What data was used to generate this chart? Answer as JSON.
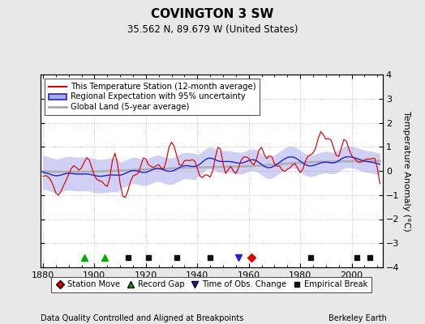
{
  "title": "COVINGTON 3 SW",
  "subtitle": "35.562 N, 89.679 W (United States)",
  "xlabel_note": "Data Quality Controlled and Aligned at Breakpoints",
  "credit": "Berkeley Earth",
  "year_start": 1880,
  "year_end": 2011,
  "ylim": [
    -4,
    4
  ],
  "yticks": [
    -4,
    -3,
    -2,
    -1,
    0,
    1,
    2,
    3,
    4
  ],
  "xticks": [
    1880,
    1900,
    1920,
    1940,
    1960,
    1980,
    2000
  ],
  "ylabel": "Temperature Anomaly (°C)",
  "bg_color": "#e8e8e8",
  "plot_bg_color": "#ffffff",
  "red_color": "#dd0000",
  "blue_color": "#2222cc",
  "blue_band_color": "#aaaaee",
  "gray_color": "#aaaaaa",
  "legend_items": [
    {
      "label": "This Temperature Station (12-month average)",
      "color": "#dd0000"
    },
    {
      "label": "Regional Expectation with 95% uncertainty",
      "color": "#2222cc"
    },
    {
      "label": "Global Land (5-year average)",
      "color": "#aaaaaa"
    }
  ],
  "marker_items": [
    {
      "label": "Station Move",
      "color": "#dd0000",
      "marker": "D",
      "ms": 5
    },
    {
      "label": "Record Gap",
      "color": "#00aa00",
      "marker": "^",
      "ms": 6
    },
    {
      "label": "Time of Obs. Change",
      "color": "#2222cc",
      "marker": "v",
      "ms": 6
    },
    {
      "label": "Empirical Break",
      "color": "#111111",
      "marker": "s",
      "ms": 4
    }
  ],
  "station_moves": [
    1961
  ],
  "record_gaps": [
    1896,
    1904
  ],
  "obs_changes": [
    1956
  ],
  "empirical_breaks": [
    1913,
    1921,
    1932,
    1945,
    1984,
    2002,
    2007
  ]
}
